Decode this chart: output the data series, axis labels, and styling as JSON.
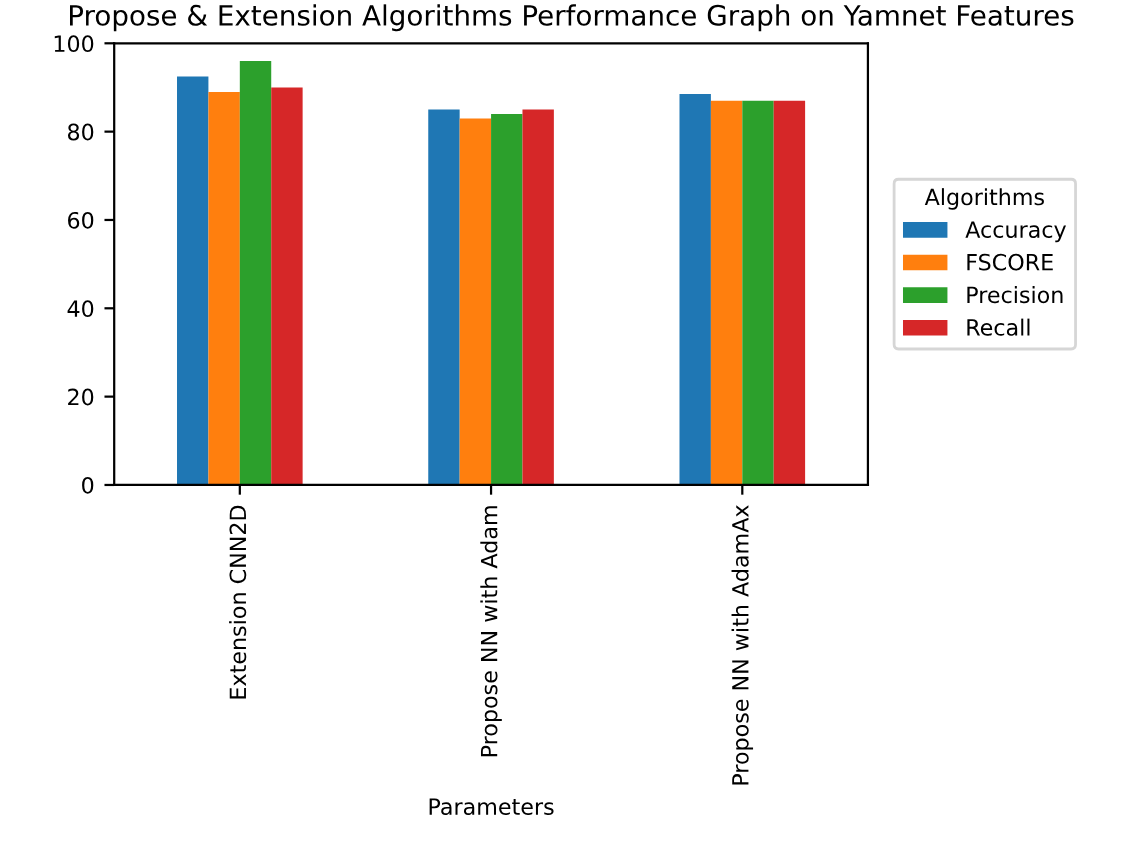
{
  "chart_data": {
    "type": "bar",
    "title": "Propose & Extension Algorithms Performance Graph on Yamnet Features",
    "xlabel": "Parameters",
    "legend_title": "Algorithms",
    "categories": [
      "Extension CNN2D",
      "Propose NN with Adam",
      "Propose NN with AdamAx"
    ],
    "series": [
      {
        "name": "Accuracy",
        "color": "#1f77b4",
        "values": [
          92.5,
          85,
          88.5
        ]
      },
      {
        "name": "FSCORE",
        "color": "#ff7f0e",
        "values": [
          89,
          83,
          87
        ]
      },
      {
        "name": "Precision",
        "color": "#2ca02c",
        "values": [
          96,
          84,
          87
        ]
      },
      {
        "name": "Recall",
        "color": "#d62728",
        "values": [
          90,
          85,
          87
        ]
      }
    ],
    "ylim": [
      0,
      100
    ],
    "yticks": [
      0,
      20,
      40,
      60,
      80,
      100
    ],
    "grid": false,
    "legend": "right"
  }
}
